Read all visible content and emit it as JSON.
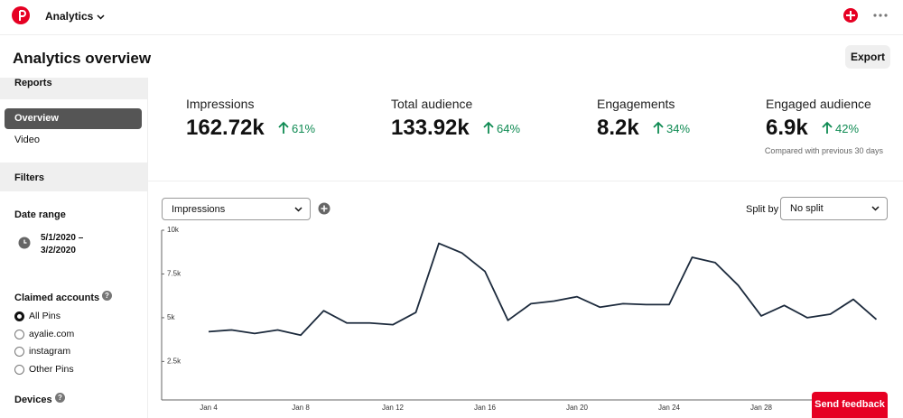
{
  "top_bar": {
    "menu": "Analytics"
  },
  "header": {
    "title": "Analytics overview",
    "export": "Export"
  },
  "sidebar": {
    "reports_heading": "Reports",
    "reports": [
      "Overview",
      "Video"
    ],
    "active_report": 0,
    "filters": "Filters",
    "date_range_label": "Date range",
    "date_range": [
      "5/1/2020 –",
      "3/2/2020"
    ],
    "claimed_accounts": "Claimed accounts",
    "accounts": [
      "All Pins",
      "ayalie.com",
      "instagram",
      "Other Pins"
    ],
    "selected_account": 0,
    "devices": "Devices"
  },
  "metrics": [
    {
      "label": "Impressions",
      "value": "162.72k",
      "change": "61%"
    },
    {
      "label": "Total audience",
      "value": "133.92k",
      "change": "64%"
    },
    {
      "label": "Engagements",
      "value": "8.2k",
      "change": "34%"
    },
    {
      "label": "Engaged audience",
      "value": "6.9k",
      "change": "42%"
    }
  ],
  "compare_note": "Compared with previous 30 days",
  "controls": {
    "metric_select": "Impressions",
    "split_label": "Split by",
    "split_select": "No split"
  },
  "feedback": "Send feedback",
  "chart_data": {
    "type": "line",
    "color": "#1d2b3d",
    "categories": [
      "Jan 4",
      null,
      null,
      null,
      "Jan 8",
      null,
      null,
      null,
      "Jan 12",
      null,
      null,
      null,
      "Jan 16",
      null,
      null,
      null,
      "Jan 20",
      null,
      null,
      null,
      "Jan 24",
      null,
      null,
      null,
      "Jan 28",
      null,
      null,
      null,
      null,
      null
    ],
    "values": [
      4200,
      4300,
      4100,
      4300,
      4000,
      5400,
      4700,
      4700,
      4600,
      5300,
      9250,
      8700,
      7650,
      4850,
      5800,
      5950,
      6200,
      5600,
      5800,
      5750,
      5750,
      8450,
      8150,
      6850,
      5100,
      5700,
      5000,
      5200,
      6050,
      4900
    ],
    "ylim": [
      300,
      10000
    ],
    "yticks": [
      {
        "value": 2500,
        "label": "2.5k"
      },
      {
        "value": 5000,
        "label": "5k"
      },
      {
        "value": 7500,
        "label": "7.5k"
      },
      {
        "value": 10000,
        "label": "10k"
      }
    ]
  }
}
